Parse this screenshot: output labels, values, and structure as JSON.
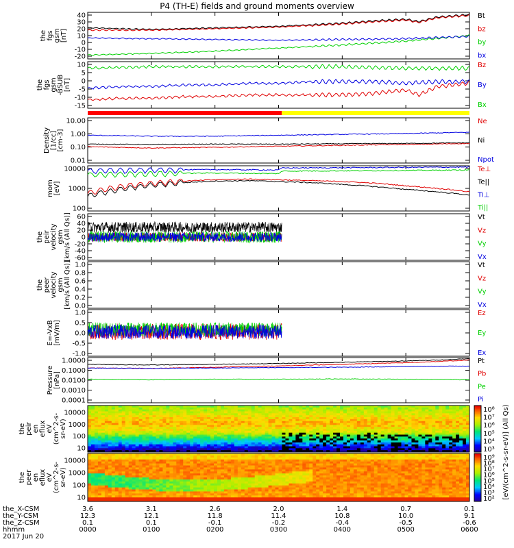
{
  "title": "P4 (TH-E) fields and ground moments overview",
  "colors": {
    "black": "#000000",
    "red": "#e00000",
    "green": "#00d000",
    "blue": "#0000e0",
    "yellow": "#ffff00",
    "bar_red": "#ff0000"
  },
  "chart_data": [
    {
      "type": "line",
      "panel": "fgs_gsm",
      "ylabel": [
        "the",
        "fgs",
        "gsm",
        "[nT]"
      ],
      "yticks": [
        "40",
        "30",
        "20",
        "10",
        "0",
        "-10",
        "-20"
      ],
      "ylim": [
        -20,
        40
      ],
      "series": [
        {
          "name": "Bt",
          "color": "#000000",
          "x": [
            0,
            0.5,
            1,
            1.5,
            2,
            2.5,
            3,
            3.5,
            4,
            4.5,
            5,
            5.2,
            5.5,
            6
          ],
          "y": [
            20,
            19,
            18,
            19,
            20,
            21,
            22,
            24,
            26,
            29,
            31,
            28,
            34,
            37
          ]
        },
        {
          "name": "bz",
          "color": "#e00000",
          "x": [
            0,
            0.5,
            1,
            1.5,
            2,
            2.5,
            3,
            3.5,
            4,
            4.5,
            5,
            5.2,
            5.5,
            6
          ],
          "y": [
            17,
            17,
            17,
            18,
            19,
            20,
            21,
            23,
            25,
            28,
            30,
            27,
            33,
            36
          ]
        },
        {
          "name": "by",
          "color": "#00d000",
          "x": [
            0,
            1,
            2,
            3,
            4,
            5,
            6
          ],
          "y": [
            -15,
            -13,
            -10,
            -6,
            -2,
            3,
            10
          ]
        },
        {
          "name": "bx",
          "color": "#0000e0",
          "x": [
            0,
            1,
            2,
            3,
            4,
            5,
            6
          ],
          "y": [
            7,
            6,
            5,
            4,
            5,
            6,
            9
          ]
        }
      ]
    },
    {
      "type": "line",
      "panel": "fgs_gsm_bsub",
      "ylabel": [
        "the",
        "fgs",
        "gsm",
        "-BSUB",
        "[nT]"
      ],
      "yticks": [
        "10",
        "5",
        "0",
        "-5",
        "-10",
        "-15"
      ],
      "ylim": [
        -18,
        10
      ],
      "series": [
        {
          "name": "Bz",
          "color": "#e00000",
          "x": [
            0,
            0.5,
            1,
            1.5,
            2,
            2.5,
            3,
            3.5,
            4,
            4.5,
            5,
            5.2,
            5.5,
            6
          ],
          "y": [
            -13,
            -12,
            -12,
            -11,
            -11,
            -10,
            -10,
            -10,
            -10,
            -9,
            -7,
            -10,
            -5,
            -3
          ]
        },
        {
          "name": "By",
          "color": "#0000e0",
          "x": [
            0,
            0.5,
            1,
            1.5,
            2,
            2.5,
            3,
            3.5,
            4,
            4.5,
            5,
            5.5,
            6
          ],
          "y": [
            -6,
            -5,
            -5,
            -4,
            -4,
            -3,
            -3,
            -2,
            -2,
            -2,
            -3,
            -2,
            -2
          ]
        },
        {
          "name": "Bx",
          "color": "#00d000",
          "x": [
            0,
            1,
            2,
            3,
            4,
            5,
            6
          ],
          "y": [
            6,
            7,
            7,
            7,
            7,
            6,
            6
          ]
        }
      ]
    },
    {
      "type": "line",
      "panel": "density",
      "log": true,
      "ylabel": [
        "Density",
        "[1/cc]",
        "[cm-3]"
      ],
      "yticks": [
        "10.00",
        "1.00",
        "0.10",
        "0.01"
      ],
      "ylim": [
        0.01,
        10
      ],
      "series": [
        {
          "name": "Ne",
          "color": "#e00000",
          "x": [
            0,
            1,
            2,
            3,
            4,
            5,
            6
          ],
          "y": [
            0.12,
            0.1,
            0.11,
            0.13,
            0.15,
            0.17,
            0.2
          ]
        },
        {
          "name": "Ni",
          "color": "#000000",
          "x": [
            0,
            1,
            2,
            3,
            4,
            5,
            6
          ],
          "y": [
            0.18,
            0.17,
            0.18,
            0.18,
            0.19,
            0.2,
            0.22
          ]
        },
        {
          "name": "Npot",
          "color": "#0000e0",
          "x": [
            0,
            1,
            2,
            3,
            4,
            5,
            6
          ],
          "y": [
            0.7,
            0.6,
            0.6,
            0.7,
            0.8,
            0.9,
            1.1
          ]
        }
      ]
    },
    {
      "type": "line",
      "panel": "temperature",
      "log": true,
      "ylabel": [
        "mom",
        "[eV]"
      ],
      "yticks": [
        "10000",
        "1000",
        "100"
      ],
      "ylim": [
        100,
        10000
      ],
      "series": [
        {
          "name": "Te⊥",
          "color": "#e00000",
          "x": [
            0,
            0.5,
            1,
            1.5,
            2,
            2.5,
            3,
            3.5,
            4,
            4.5,
            5,
            5.5,
            6
          ],
          "y": [
            600,
            1200,
            1700,
            2100,
            2400,
            2600,
            2400,
            2200,
            2000,
            1700,
            1300,
            1000,
            700
          ]
        },
        {
          "name": "Te||",
          "color": "#000000",
          "x": [
            0,
            0.5,
            1,
            1.5,
            2,
            2.5,
            3,
            3.5,
            4,
            4.5,
            5,
            5.5,
            6
          ],
          "y": [
            450,
            900,
            1400,
            1800,
            2100,
            2200,
            2000,
            1800,
            1500,
            1200,
            900,
            700,
            500
          ]
        },
        {
          "name": "Ti⊥",
          "color": "#0000e0",
          "x": [
            0,
            1,
            2,
            3,
            3.05,
            4,
            5,
            6
          ],
          "y": [
            6000,
            6500,
            6800,
            6500,
            8000,
            8200,
            8500,
            8800
          ]
        },
        {
          "name": "Ti||",
          "color": "#00d000",
          "x": [
            0,
            1,
            2,
            3,
            3.05,
            4,
            5,
            6
          ],
          "y": [
            4000,
            4500,
            4800,
            4500,
            5800,
            6000,
            6200,
            6500
          ]
        }
      ]
    },
    {
      "type": "line",
      "panel": "peir_velocity",
      "ylabel": [
        "the",
        "peir",
        "velocity",
        "gsm",
        "[km/s (All Qs)]"
      ],
      "yticks": [
        "60",
        "40",
        "20",
        "0",
        "-20",
        "-40",
        "-60"
      ],
      "ylim": [
        -60,
        60
      ],
      "series": [
        {
          "name": "Vt",
          "color": "#000000"
        },
        {
          "name": "Vz",
          "color": "#e00000"
        },
        {
          "name": "Vy",
          "color": "#00d000"
        },
        {
          "name": "Vx",
          "color": "#0000e0"
        }
      ]
    },
    {
      "type": "line",
      "panel": "peer_velocity",
      "ylabel": [
        "the",
        "peer",
        "velocity",
        "gsm",
        "[km/s (All Qs)]"
      ],
      "yticks": [
        "1.0",
        "0.8",
        "0.6",
        "0.4",
        "0.2",
        "0.0"
      ],
      "ylim": [
        0,
        1
      ],
      "series": [
        {
          "name": "Vt",
          "color": "#000000"
        },
        {
          "name": "Vz",
          "color": "#e00000"
        },
        {
          "name": "Vy",
          "color": "#00d000"
        },
        {
          "name": "Vx",
          "color": "#0000e0"
        }
      ]
    },
    {
      "type": "line",
      "panel": "efield",
      "ylabel": [
        "E=-VxB",
        "[mV/m]"
      ],
      "yticks": [
        "1.0",
        "0.5",
        "0.0",
        "-0.5",
        "-1.0"
      ],
      "ylim": [
        -1,
        1
      ],
      "series": [
        {
          "name": "Ez",
          "color": "#e00000"
        },
        {
          "name": "Ey",
          "color": "#00d000"
        },
        {
          "name": "Ex",
          "color": "#0000e0"
        }
      ]
    },
    {
      "type": "line",
      "panel": "pressure",
      "log": true,
      "ylabel": [
        "Pressure",
        "[nPa]"
      ],
      "yticks": [
        "1.0000",
        "0.1000",
        "0.0100",
        "0.0010",
        "0.0001"
      ],
      "ylim": [
        0.0001,
        1
      ],
      "series": [
        {
          "name": "Pt",
          "color": "#000000",
          "x": [
            0,
            1,
            2,
            3,
            4,
            5,
            5.5,
            6
          ],
          "y": [
            0.25,
            0.22,
            0.25,
            0.3,
            0.38,
            0.5,
            0.6,
            0.8
          ]
        },
        {
          "name": "Pb",
          "color": "#e00000",
          "x": [
            0,
            1,
            2,
            3,
            4,
            5,
            5.5,
            6
          ],
          "y": [
            0.12,
            0.11,
            0.14,
            0.18,
            0.25,
            0.35,
            0.45,
            0.6
          ]
        },
        {
          "name": "Pe",
          "color": "#00d000",
          "x": [
            0,
            1,
            2,
            3,
            4,
            5,
            6
          ],
          "y": [
            0.012,
            0.011,
            0.012,
            0.012,
            0.013,
            0.012,
            0.011
          ]
        },
        {
          "name": "Pi",
          "color": "#0000e0",
          "x": [
            0,
            1,
            2,
            3,
            4,
            5,
            6
          ],
          "y": [
            0.12,
            0.11,
            0.12,
            0.13,
            0.14,
            0.16,
            0.18
          ]
        }
      ]
    },
    {
      "type": "heatmap",
      "panel": "peir_spectrogram",
      "log": true,
      "ylabel": [
        "the",
        "peir",
        "en",
        "eflux",
        "eV",
        "(cm^2-s-",
        "sr-eV)"
      ],
      "yticks": [
        "10000",
        "1000",
        "100",
        "10"
      ],
      "ylim": [
        5,
        25000
      ]
    },
    {
      "type": "heatmap",
      "panel": "peer_spectrogram",
      "log": true,
      "ylabel": [
        "the",
        "peer",
        "en",
        "eflux",
        "eV",
        "(cm^2-s-",
        "sr-eV)"
      ],
      "yticks": [
        "10000",
        "1000",
        "100",
        "10"
      ],
      "ylim": [
        5,
        25000
      ]
    }
  ],
  "colorbar_top": {
    "ticks": [
      "10⁸",
      "10⁷",
      "10⁶",
      "10⁵",
      "10⁴",
      "10³"
    ],
    "label": "(All Qs)"
  },
  "colorbar_bottom": {
    "ticks": [
      "10⁹",
      "10⁸",
      "10⁷",
      "10⁶",
      "10⁵",
      "10⁴",
      "10³",
      "10²"
    ],
    "label": "[eV/(cm^2-s-sr-eV)]"
  },
  "x_axis": {
    "rows": [
      {
        "label": "the_X-CSM",
        "values": [
          "3.6",
          "3.1",
          "2.6",
          "2.0",
          "1.4",
          "0.7",
          "0.1"
        ]
      },
      {
        "label": "the_Y-CSM",
        "values": [
          "12.3",
          "12.1",
          "11.8",
          "11.4",
          "10.8",
          "10.0",
          "9.1"
        ]
      },
      {
        "label": "the_Z-CSM",
        "values": [
          "0.1",
          "0.1",
          "-0.1",
          "-0.2",
          "-0.4",
          "-0.5",
          "-0.6"
        ]
      },
      {
        "label": "hhmm",
        "values": [
          "0000",
          "0100",
          "0200",
          "0300",
          "0400",
          "0500",
          "0600"
        ]
      }
    ],
    "date": "2017 Jun 20"
  }
}
